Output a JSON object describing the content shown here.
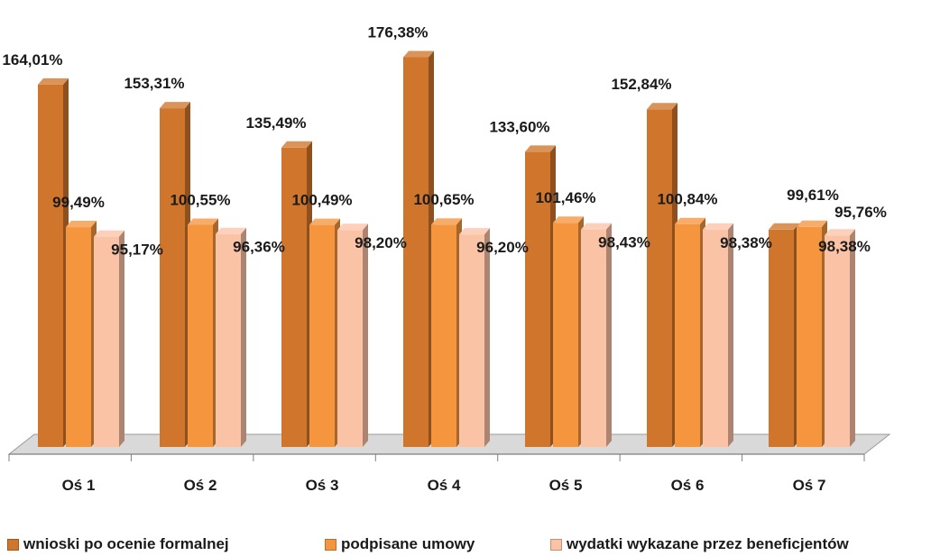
{
  "chart_data": {
    "type": "bar",
    "categories": [
      "Oś 1",
      "Oś 2",
      "Oś 3",
      "Oś 4",
      "Oś 5",
      "Oś 6",
      "Oś 7"
    ],
    "series": [
      {
        "name": "wnioski po ocenie formalnej",
        "values": [
          164.01,
          153.31,
          135.49,
          176.38,
          133.6,
          152.84,
          98.38
        ],
        "labels": [
          "164,01%",
          "153,31%",
          "135,49%",
          "176,38%",
          "133,60%",
          "152,84%",
          "98,38%"
        ]
      },
      {
        "name": "podpisane umowy",
        "values": [
          99.49,
          100.55,
          100.49,
          100.65,
          101.46,
          100.84,
          99.61
        ],
        "labels": [
          "99,49%",
          "100,55%",
          "100,49%",
          "100,65%",
          "101,46%",
          "100,84%",
          "99,61%"
        ]
      },
      {
        "name": "wydatki wykazane przez beneficjentów",
        "values": [
          95.17,
          96.36,
          98.2,
          96.2,
          98.43,
          98.38,
          95.76
        ],
        "labels": [
          "95,17%",
          "96,36%",
          "98,20%",
          "96,20%",
          "98,43%",
          "98,38%",
          "95,76%"
        ]
      }
    ],
    "colors": [
      "#d0762c",
      "#f5963f",
      "#fbc3a6"
    ],
    "title": "",
    "xlabel": "",
    "ylabel": "",
    "ylim": [
      0,
      185
    ],
    "grid": false,
    "legend": "bottom",
    "style": "3d-bar"
  }
}
